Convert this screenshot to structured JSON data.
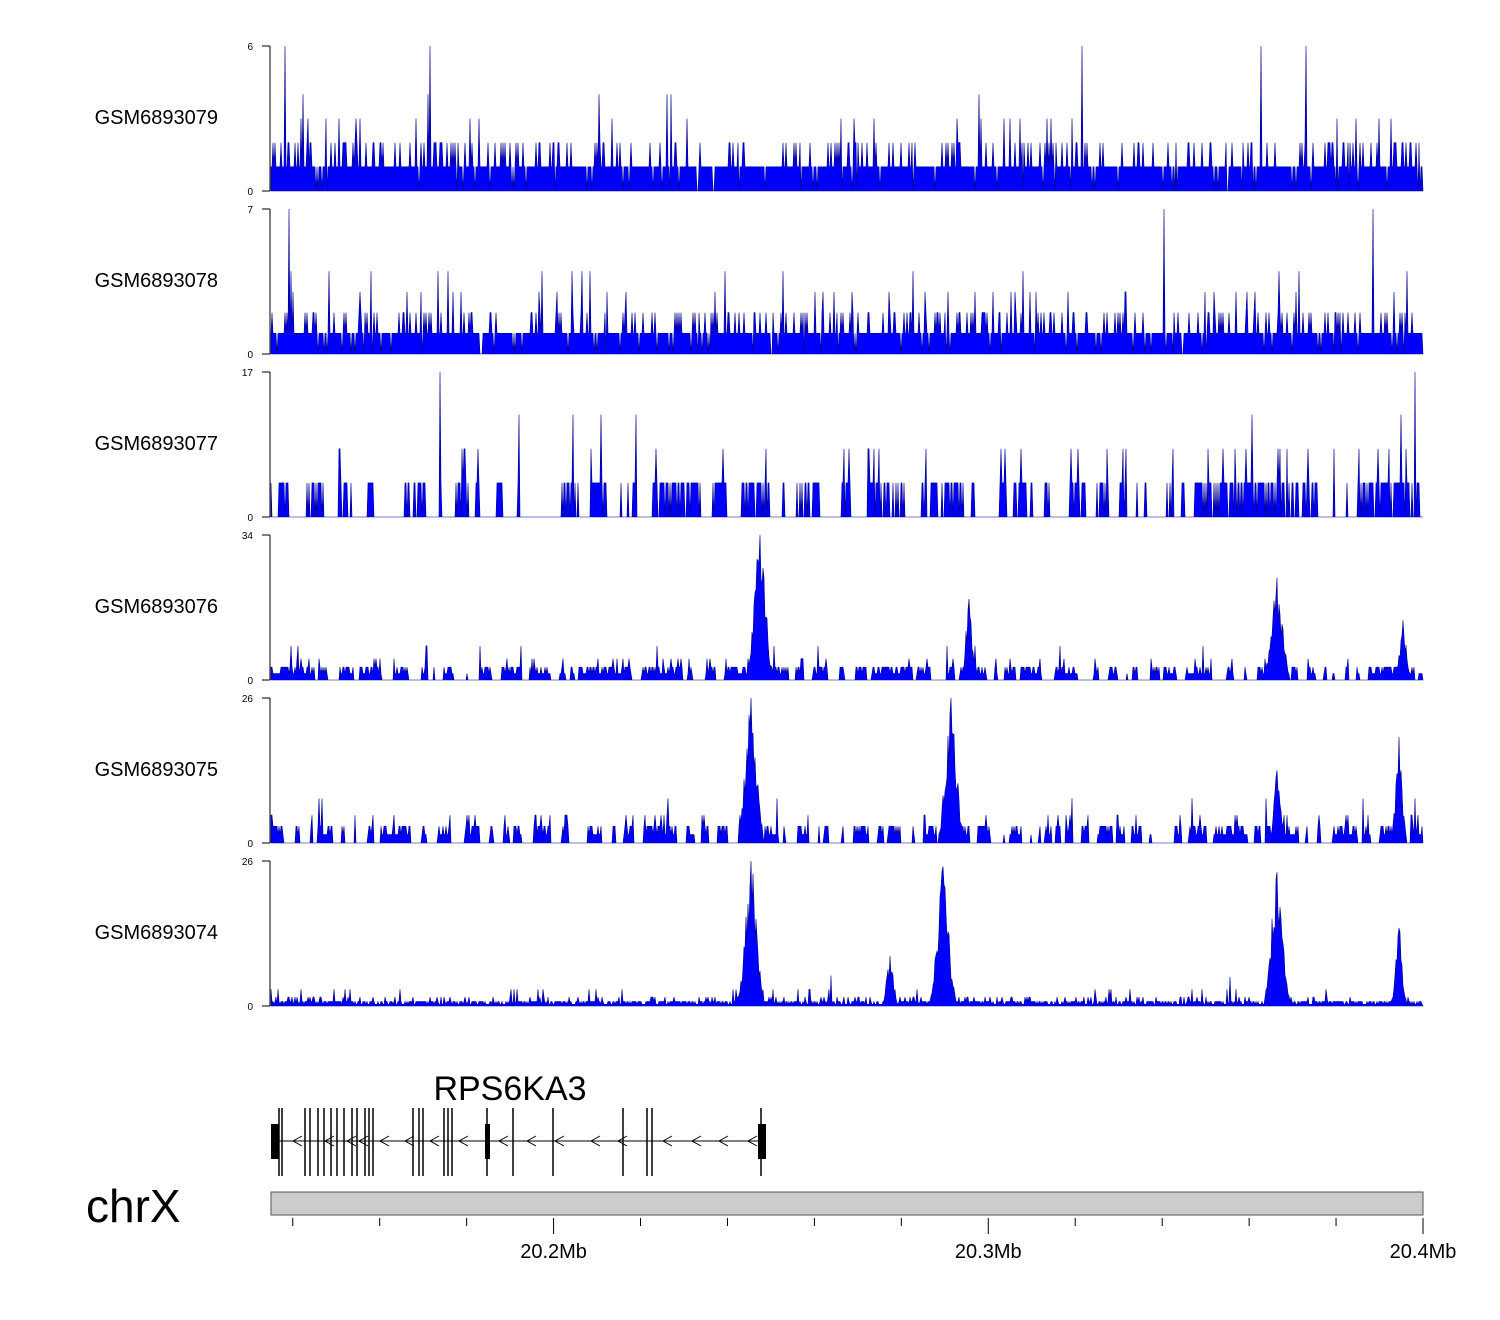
{
  "chart_data": {
    "type": "area",
    "chromosome": "chrX",
    "series_color": "#0000ff",
    "x_range_mb": [
      20.135,
      20.4
    ],
    "x_ticks": [
      {
        "value": 20.2,
        "label": "20.2Mb"
      },
      {
        "value": 20.3,
        "label": "20.3Mb"
      },
      {
        "value": 20.4,
        "label": "20.4Mb"
      }
    ],
    "gene": {
      "name": "RPS6KA3",
      "start_mb": 20.1355,
      "end_mb": 20.2488,
      "strand": "-"
    },
    "tracks": [
      {
        "name": "GSM6893079",
        "ymax": 6,
        "ylim_labels": [
          "6",
          "0"
        ],
        "peaks": []
      },
      {
        "name": "GSM6893078",
        "ymax": 7,
        "ylim_labels": [
          "7",
          "0"
        ],
        "peaks": []
      },
      {
        "name": "GSM6893077",
        "ymax": 17,
        "ylim_labels": [
          "17",
          "0"
        ],
        "peaks": []
      },
      {
        "name": "GSM6893076",
        "ymax": 34,
        "ylim_labels": [
          "34",
          "0"
        ],
        "peaks": [
          {
            "x": 20.2475,
            "y": 34
          },
          {
            "x": 20.2955,
            "y": 19
          },
          {
            "x": 20.3665,
            "y": 24
          },
          {
            "x": 20.3955,
            "y": 14
          }
        ]
      },
      {
        "name": "GSM6893075",
        "ymax": 26,
        "ylim_labels": [
          "26",
          "0"
        ],
        "peaks": [
          {
            "x": 20.2455,
            "y": 26
          },
          {
            "x": 20.2915,
            "y": 26
          },
          {
            "x": 20.3665,
            "y": 13
          },
          {
            "x": 20.3945,
            "y": 19
          }
        ]
      },
      {
        "name": "GSM6893074",
        "ymax": 26,
        "ylim_labels": [
          "26",
          "0"
        ],
        "peaks": [
          {
            "x": 20.2455,
            "y": 26
          },
          {
            "x": 20.2895,
            "y": 25
          },
          {
            "x": 20.3665,
            "y": 24
          },
          {
            "x": 20.3945,
            "y": 14
          },
          {
            "x": 20.2775,
            "y": 9
          }
        ]
      }
    ]
  }
}
